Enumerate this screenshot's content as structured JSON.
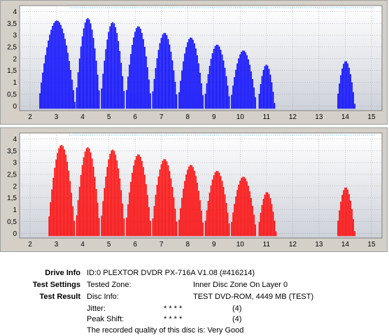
{
  "chart_data": [
    {
      "type": "bar",
      "color": "#0000ff",
      "x_ticks": [
        "2",
        "3",
        "4",
        "5",
        "6",
        "7",
        "8",
        "9",
        "10",
        "11",
        "12",
        "13",
        "14",
        "15"
      ],
      "y_ticks": [
        "0",
        "0,5",
        "1",
        "1,5",
        "2",
        "2,5",
        "3",
        "3,5",
        "4"
      ],
      "xlim": [
        1.6,
        15.4
      ],
      "ylim": [
        -0.2,
        4.25
      ],
      "grid": true,
      "humps": [
        {
          "start": 2.3,
          "end": 3.7,
          "peak": 3.62
        },
        {
          "start": 3.7,
          "end": 4.65,
          "peak": 3.72
        },
        {
          "start": 4.65,
          "end": 5.6,
          "peak": 3.55
        },
        {
          "start": 5.6,
          "end": 6.6,
          "peak": 3.38
        },
        {
          "start": 6.6,
          "end": 7.6,
          "peak": 3.1
        },
        {
          "start": 7.6,
          "end": 8.6,
          "peak": 2.9
        },
        {
          "start": 8.6,
          "end": 9.6,
          "peak": 2.6
        },
        {
          "start": 9.6,
          "end": 10.6,
          "peak": 2.35
        },
        {
          "start": 10.65,
          "end": 11.3,
          "peak": 1.75
        },
        {
          "start": 13.65,
          "end": 14.35,
          "peak": 1.9
        }
      ]
    },
    {
      "type": "bar",
      "color": "#ff0000",
      "x_ticks": [
        "2",
        "3",
        "4",
        "5",
        "6",
        "7",
        "8",
        "9",
        "10",
        "11",
        "12",
        "13",
        "14",
        "15"
      ],
      "y_ticks": [
        "0",
        "0,5",
        "1",
        "1,5",
        "2",
        "2,5",
        "3",
        "3,5",
        "4"
      ],
      "xlim": [
        1.6,
        15.4
      ],
      "ylim": [
        -0.2,
        4.25
      ],
      "grid": true,
      "humps": [
        {
          "start": 2.65,
          "end": 3.7,
          "peak": 3.75
        },
        {
          "start": 3.7,
          "end": 4.65,
          "peak": 3.65
        },
        {
          "start": 4.65,
          "end": 5.6,
          "peak": 3.55
        },
        {
          "start": 5.6,
          "end": 6.6,
          "peak": 3.35
        },
        {
          "start": 6.6,
          "end": 7.6,
          "peak": 3.15
        },
        {
          "start": 7.6,
          "end": 8.6,
          "peak": 2.9
        },
        {
          "start": 8.6,
          "end": 9.6,
          "peak": 2.65
        },
        {
          "start": 9.6,
          "end": 10.6,
          "peak": 2.4
        },
        {
          "start": 10.65,
          "end": 11.35,
          "peak": 1.75
        },
        {
          "start": 13.65,
          "end": 14.35,
          "peak": 1.95
        }
      ]
    }
  ],
  "info": {
    "drive_info_label": "Drive Info",
    "drive_info_value": "ID:0 PLEXTOR DVDR PX-716A V1.08 (#416214)",
    "test_settings_label": "Test Settings",
    "tested_zone_label": "Tested Zone:",
    "tested_zone_value": "Inner Disc Zone On Layer 0",
    "test_result_label": "Test Result",
    "disc_info_label": "Disc Info:",
    "disc_info_value": "TEST DVD-ROM, 4449 MB (TEST)",
    "jitter_label": "Jitter:",
    "jitter_stars": "* * * *",
    "jitter_score": "(4)",
    "peak_shift_label": "Peak Shift:",
    "peak_shift_stars": "* * * *",
    "peak_shift_score": "(4)",
    "quality_text": "The recorded quality of this disc is: Very Good"
  }
}
